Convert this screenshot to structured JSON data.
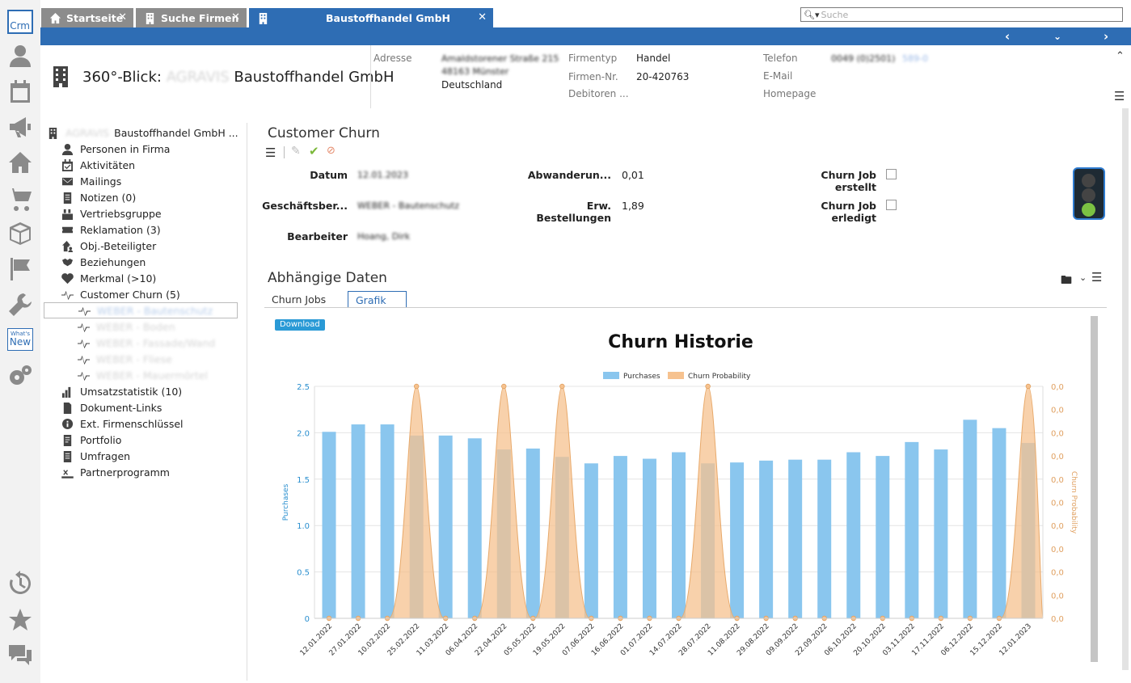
{
  "rail": {
    "logo": "Crm",
    "whatsnew_small": "What's",
    "whatsnew_big": "New",
    "icons": [
      "user-icon",
      "calendar-icon",
      "megaphone-icon",
      "home-icon",
      "cart-icon",
      "box-icon",
      "flag-icon",
      "wrench-icon",
      "gears-icon",
      "history-icon",
      "star-icon",
      "chat-icon"
    ]
  },
  "tabs": [
    {
      "label": "Startseite",
      "icon": "home-icon"
    },
    {
      "label": "Suche Firmen",
      "icon": "building-icon"
    },
    {
      "label": "Baustoffhandel GmbH",
      "icon": "building-icon"
    }
  ],
  "search": {
    "placeholder": "Suche"
  },
  "header": {
    "title_prefix": "360°-Blick:",
    "title_blur": "AGRAVIS",
    "title_suffix": "Baustoffhandel GmbH",
    "address_label": "Adresse",
    "address_line1": "Amaldstorener Straße 215",
    "address_line2": "48163 Münster",
    "address_line3": "Deutschland",
    "firmentyp_label": "Firmentyp",
    "firmentyp_value": "Handel",
    "firmennr_label": "Firmen-Nr.",
    "firmennr_value": "20-420763",
    "debitoren_label": "Debitoren ...",
    "telefon_label": "Telefon",
    "telefon_value": "0049 (0)2501)",
    "telefon_ext": "589-0",
    "email_label": "E-Mail",
    "homepage_label": "Homepage"
  },
  "tree": {
    "root_blur": "AGRAVIS",
    "root_label": "Baustoffhandel GmbH ...",
    "items": [
      {
        "label": "Personen in Firma"
      },
      {
        "label": "Aktivitäten"
      },
      {
        "label": "Mailings"
      },
      {
        "label": "Notizen (0)"
      },
      {
        "label": "Vertriebsgruppe"
      },
      {
        "label": "Reklamation (3)"
      },
      {
        "label": "Obj.-Beteiligter"
      },
      {
        "label": "Beziehungen"
      },
      {
        "label": "Merkmal (>10)"
      },
      {
        "label": "Customer Churn (5)"
      }
    ],
    "sub_items": [
      {
        "label": "WEBER - Bautenschutz"
      },
      {
        "label": "WEBER - Boden"
      },
      {
        "label": "WEBER - Fassade/Wand"
      },
      {
        "label": "WEBER - Fliese"
      },
      {
        "label": "WEBER - Mauermörtel"
      }
    ],
    "items2": [
      {
        "label": "Umsatzstatistik (10)"
      },
      {
        "label": "Dokument-Links"
      },
      {
        "label": "Ext. Firmenschlüssel"
      },
      {
        "label": "Portfolio"
      },
      {
        "label": "Umfragen"
      },
      {
        "label": "Partnerprogramm"
      }
    ]
  },
  "churn": {
    "title": "Customer Churn",
    "datum_label": "Datum",
    "datum_value": "12.01.2023",
    "gb_label": "Geschäftsber...",
    "gb_value": "WEBER - Bautenschutz",
    "bearbeiter_label": "Bearbeiter",
    "bearbeiter_value": "Hoang, Dirk",
    "abw_label": "Abwanderun...",
    "abw_value": "0,01",
    "erw_label1": "Erw.",
    "erw_label2": "Bestellungen",
    "erw_value": "1,89",
    "job1_label1": "Churn Job",
    "job1_label2": "erstellt",
    "job2_label1": "Churn Job",
    "job2_label2": "erledigt"
  },
  "dependent": {
    "title": "Abhängige Daten",
    "tab1": "Churn Jobs",
    "tab2": "Grafik",
    "download": "Download"
  },
  "chart_data": {
    "type": "bar",
    "title": "Churn Historie",
    "categories": [
      "12.01.2022",
      "27.01.2022",
      "10.02.2022",
      "25.02.2022",
      "11.03.2022",
      "06.04.2022",
      "22.04.2022",
      "05.05.2022",
      "19.05.2022",
      "07.06.2022",
      "16.06.2022",
      "01.07.2022",
      "14.07.2022",
      "28.07.2022",
      "11.08.2022",
      "29.08.2022",
      "09.09.2022",
      "22.09.2022",
      "06.10.2022",
      "20.10.2022",
      "03.11.2022",
      "17.11.2022",
      "06.12.2022",
      "15.12.2022",
      "12.01.2023"
    ],
    "series": [
      {
        "name": "Purchases",
        "type": "bar",
        "axis": "left",
        "color": "#8ac6ee",
        "values": [
          2.01,
          2.09,
          2.09,
          1.97,
          1.97,
          1.94,
          1.82,
          1.83,
          1.74,
          1.67,
          1.75,
          1.72,
          1.79,
          1.67,
          1.68,
          1.7,
          1.71,
          1.71,
          1.79,
          1.75,
          1.9,
          1.82,
          2.14,
          2.05,
          1.89
        ]
      },
      {
        "name": "Churn Probability",
        "type": "area",
        "axis": "right",
        "color": "#f6c28f",
        "values": [
          0,
          0,
          0,
          1,
          0,
          0,
          1,
          0,
          1,
          0,
          0,
          0,
          0,
          1,
          0,
          0,
          0,
          0,
          0,
          0,
          0,
          0,
          0,
          0,
          1
        ]
      }
    ],
    "ylabel": "Purchases",
    "y2label": "Churn Probability",
    "ylim": [
      0,
      2.5
    ],
    "yticks": [
      "0",
      "0.5",
      "1.0",
      "1.5",
      "2.0",
      "2.5"
    ],
    "y2ticks": [
      "0,0",
      "0,0",
      "0,0",
      "0,0",
      "0,0",
      "0,0",
      "0,0",
      "0,0",
      "0,0",
      "0,0",
      "0,0"
    ],
    "legend": "top",
    "grid": true
  }
}
